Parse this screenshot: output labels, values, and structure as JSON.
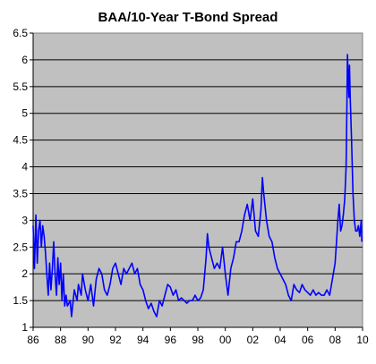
{
  "chart_data": {
    "type": "line",
    "title": "BAA/10-Year T-Bond Spread",
    "xlabel": "",
    "ylabel": "",
    "xlim": [
      1986,
      2010
    ],
    "ylim": [
      1,
      6.5
    ],
    "y_ticks": [
      "1",
      "1.5",
      "2",
      "2.5",
      "3",
      "3.5",
      "4",
      "4.5",
      "5",
      "5.5",
      "6",
      "6.5"
    ],
    "x_ticks": [
      "86",
      "88",
      "90",
      "92",
      "94",
      "96",
      "98",
      "00",
      "02",
      "04",
      "06",
      "08",
      "10"
    ],
    "grid": "horizontal",
    "legend": "none",
    "plot_background": "#c0c0c0",
    "line_color": "#0000ff",
    "series": [
      {
        "x": [
          1986.0,
          1986.1,
          1986.2,
          1986.3,
          1986.4,
          1986.5,
          1986.6,
          1986.7,
          1986.8,
          1986.9,
          1987.0,
          1987.1,
          1987.2,
          1987.3,
          1987.4,
          1987.5,
          1987.6,
          1987.7,
          1987.8,
          1987.9,
          1988.0,
          1988.1,
          1988.2,
          1988.3,
          1988.4,
          1988.5,
          1988.7,
          1988.8,
          1989.0,
          1989.2,
          1989.3,
          1989.5,
          1989.6,
          1989.8,
          1990.0,
          1990.2,
          1990.4,
          1990.6,
          1990.8,
          1991.0,
          1991.2,
          1991.4,
          1991.6,
          1991.8,
          1992.0,
          1992.2,
          1992.4,
          1992.6,
          1992.8,
          1993.0,
          1993.2,
          1993.4,
          1993.6,
          1993.8,
          1994.0,
          1994.2,
          1994.4,
          1994.6,
          1994.8,
          1995.0,
          1995.2,
          1995.4,
          1995.6,
          1995.8,
          1996.0,
          1996.2,
          1996.4,
          1996.6,
          1996.8,
          1997.0,
          1997.2,
          1997.4,
          1997.6,
          1997.8,
          1998.0,
          1998.2,
          1998.4,
          1998.6,
          1998.7,
          1998.8,
          1999.0,
          1999.2,
          1999.4,
          1999.6,
          1999.8,
          2000.0,
          2000.2,
          2000.4,
          2000.6,
          2000.8,
          2001.0,
          2001.2,
          2001.4,
          2001.6,
          2001.8,
          2002.0,
          2002.2,
          2002.4,
          2002.6,
          2002.7,
          2002.8,
          2003.0,
          2003.2,
          2003.4,
          2003.6,
          2003.8,
          2004.0,
          2004.2,
          2004.4,
          2004.6,
          2004.8,
          2005.0,
          2005.2,
          2005.4,
          2005.6,
          2005.8,
          2006.0,
          2006.2,
          2006.4,
          2006.6,
          2006.8,
          2007.0,
          2007.2,
          2007.4,
          2007.6,
          2007.8,
          2008.0,
          2008.1,
          2008.2,
          2008.3,
          2008.4,
          2008.5,
          2008.6,
          2008.7,
          2008.8,
          2008.85,
          2008.9,
          2008.95,
          2009.0,
          2009.05,
          2009.1,
          2009.2,
          2009.3,
          2009.4,
          2009.5,
          2009.6,
          2009.7,
          2009.8,
          2009.9,
          2009.95
        ],
        "y": [
          2.9,
          2.1,
          3.1,
          2.2,
          2.8,
          3.0,
          2.5,
          2.9,
          2.7,
          2.4,
          2.0,
          1.6,
          2.2,
          1.7,
          2.1,
          2.6,
          2.0,
          1.6,
          2.3,
          1.8,
          2.2,
          1.5,
          2.0,
          1.4,
          1.6,
          1.4,
          1.5,
          1.2,
          1.7,
          1.5,
          1.8,
          1.6,
          2.0,
          1.7,
          1.5,
          1.8,
          1.4,
          1.9,
          2.1,
          2.0,
          1.7,
          1.6,
          1.8,
          2.1,
          2.2,
          2.0,
          1.8,
          2.1,
          2.0,
          2.1,
          2.2,
          2.0,
          2.1,
          1.8,
          1.7,
          1.5,
          1.35,
          1.45,
          1.3,
          1.2,
          1.5,
          1.4,
          1.6,
          1.8,
          1.75,
          1.6,
          1.7,
          1.5,
          1.55,
          1.5,
          1.45,
          1.5,
          1.5,
          1.6,
          1.5,
          1.55,
          1.7,
          2.3,
          2.75,
          2.5,
          2.3,
          2.1,
          2.2,
          2.1,
          2.5,
          2.0,
          1.6,
          2.1,
          2.3,
          2.6,
          2.6,
          2.8,
          3.1,
          3.3,
          3.0,
          3.4,
          2.8,
          2.7,
          3.2,
          3.8,
          3.5,
          3.0,
          2.7,
          2.6,
          2.3,
          2.1,
          2.0,
          1.9,
          1.8,
          1.6,
          1.5,
          1.8,
          1.7,
          1.65,
          1.8,
          1.7,
          1.65,
          1.6,
          1.7,
          1.6,
          1.65,
          1.6,
          1.6,
          1.7,
          1.6,
          1.9,
          2.2,
          2.6,
          3.0,
          3.3,
          2.8,
          2.9,
          3.1,
          3.4,
          4.0,
          5.0,
          6.1,
          5.7,
          5.3,
          5.9,
          5.3,
          4.5,
          3.5,
          3.0,
          2.8,
          2.8,
          2.9,
          2.7,
          3.0,
          2.6
        ]
      }
    ]
  }
}
